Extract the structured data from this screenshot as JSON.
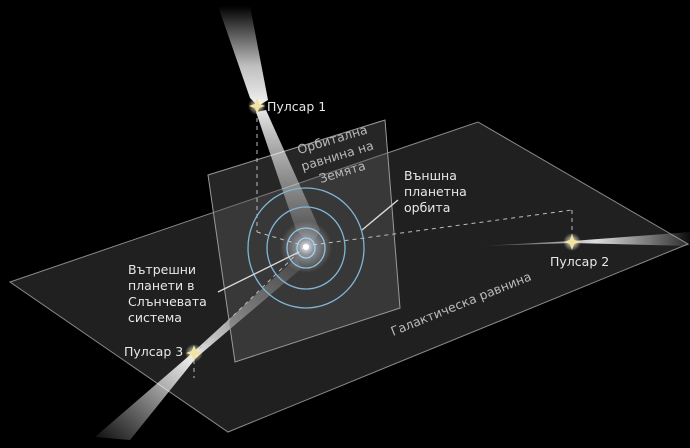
{
  "labels": {
    "pulsar1": "Пулсар 1",
    "pulsar2": "Пулсар 2",
    "pulsar3": "Пулсар 3",
    "orbital_plane": [
      "Орбитална",
      "равнина на",
      "Земята"
    ],
    "outer_orbit": [
      "Външна",
      "планетна",
      "орбита"
    ],
    "inner_planets": [
      "Вътрешни",
      "планети в",
      "Слънчевата",
      "система"
    ],
    "galactic_plane": "Галактическа равнина"
  },
  "colors": {
    "background": "#000000",
    "plane_fill": "#3a3a3a",
    "plane_stroke": "#8a8a8a",
    "orbit": "#7fb6d6",
    "pulsar": "#f1e3a6",
    "text": "#e8e8e8"
  }
}
